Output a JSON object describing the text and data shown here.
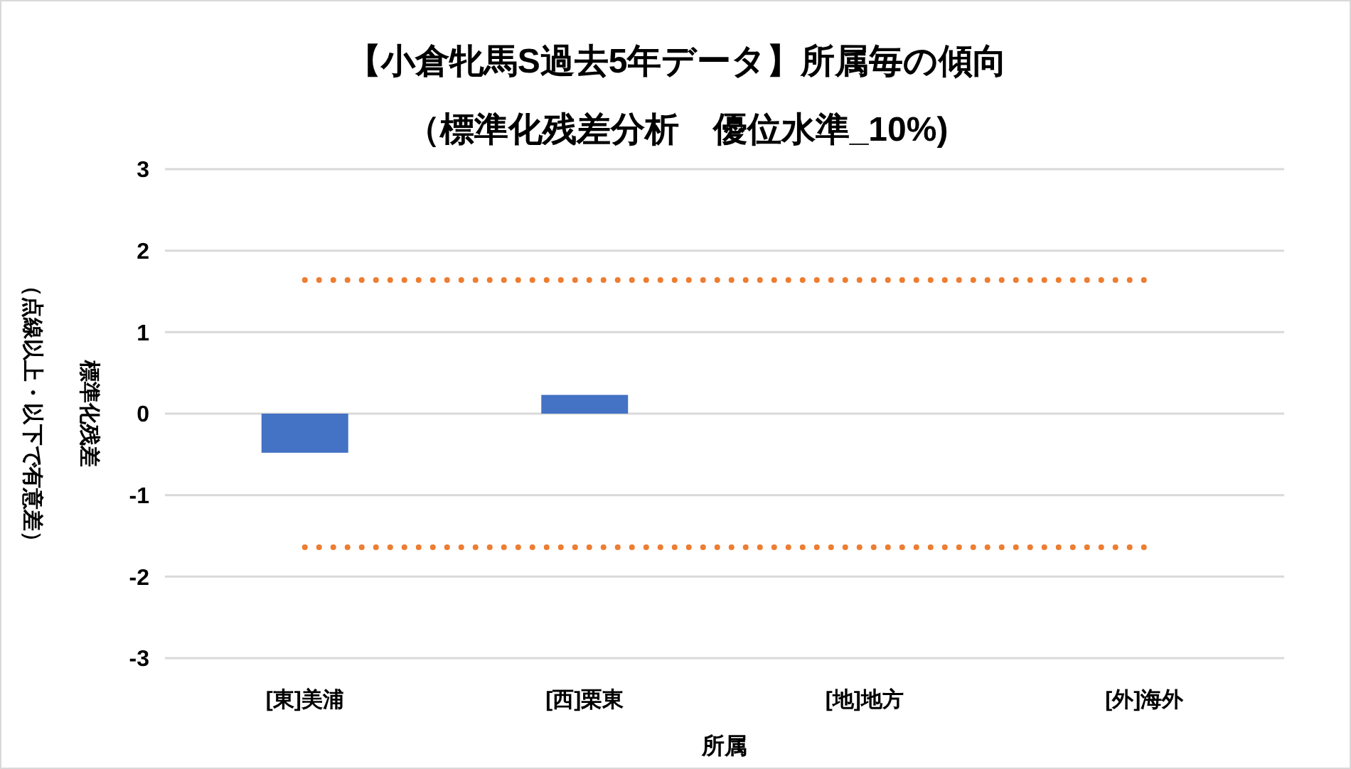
{
  "chart_data": {
    "type": "bar",
    "title": "【小倉牝馬S過去5年データ】所属毎の傾向",
    "subtitle": "（標準化残差分析　優位水準_10%)",
    "xlabel": "所属",
    "ylabel": "標準化残差（点線以上・以下で有意差）",
    "categories": [
      "[東]美浦",
      "[西]栗東",
      "[地]地方",
      "[外]海外"
    ],
    "series": [
      {
        "color": "#4472c4",
        "values": [
          -0.48,
          0.23,
          null,
          null
        ]
      },
      {
        "type": "line",
        "color": "#ed7d31",
        "line_style": "dotted",
        "values": [
          1.64,
          1.64,
          1.64,
          1.64
        ]
      },
      {
        "type": "line",
        "color": "#ed7d31",
        "line_style": "dotted",
        "values": [
          -1.64,
          -1.64,
          -1.64,
          -1.64
        ]
      }
    ],
    "ylim": [
      -3,
      3
    ],
    "yticks": [
      -3,
      -2,
      -1,
      0,
      1,
      2,
      3
    ],
    "grid": "y"
  }
}
